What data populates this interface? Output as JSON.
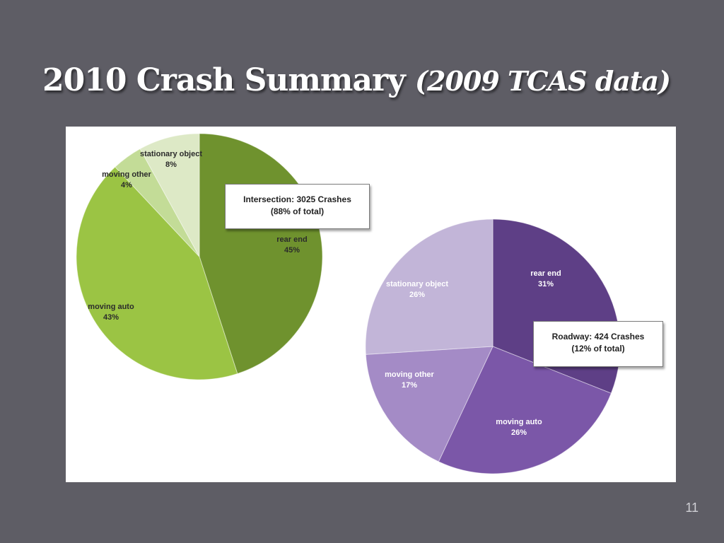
{
  "slide": {
    "title_main": "2010 Crash Summary",
    "title_sub": "(2009 TCAS data)",
    "page_number": "11"
  },
  "chart_data": [
    {
      "type": "pie",
      "callout_title": "Intersection: 3025 Crashes",
      "callout_subtitle": "(88% of total)",
      "slices": [
        {
          "label": "rear end",
          "value": 45,
          "value_label": "45%",
          "color": "#6f922e"
        },
        {
          "label": "moving auto",
          "value": 43,
          "value_label": "43%",
          "color": "#9bc444"
        },
        {
          "label": "moving other",
          "value": 4,
          "value_label": "4%",
          "color": "#c3dc97"
        },
        {
          "label": "stationary object",
          "value": 8,
          "value_label": "8%",
          "color": "#dde9c6"
        }
      ]
    },
    {
      "type": "pie",
      "callout_title": "Roadway: 424 Crashes",
      "callout_subtitle": "(12% of total)",
      "slices": [
        {
          "label": "rear end",
          "value": 31,
          "value_label": "31%",
          "color": "#5e3f86"
        },
        {
          "label": "moving auto",
          "value": 26,
          "value_label": "26%",
          "color": "#7b57a8"
        },
        {
          "label": "moving other",
          "value": 17,
          "value_label": "17%",
          "color": "#a48bc6"
        },
        {
          "label": "stationary object",
          "value": 26,
          "value_label": "26%",
          "color": "#c2b5d8"
        }
      ]
    }
  ]
}
